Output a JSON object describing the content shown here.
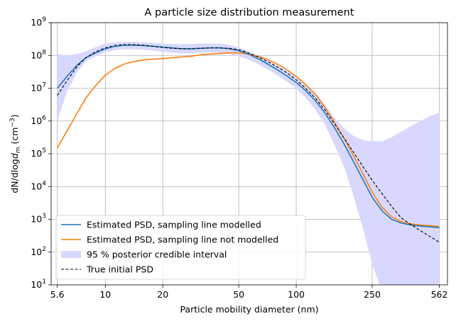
{
  "chart_data": {
    "type": "line",
    "title": "A particle size distribution measurement",
    "xlabel": "Particle mobility diameter (nm)",
    "ylabel_main": "dN/dlog",
    "ylabel_sym": "d",
    "ylabel_sub": "m",
    "ylabel_unit_pre": " (cm",
    "ylabel_unit_exp": "−3",
    "ylabel_unit_post": ")",
    "xscale": "log",
    "yscale": "log",
    "xlim": [
      5.2,
      620
    ],
    "ylim": [
      10,
      1000000000
    ],
    "grid": true,
    "legend_position": "lower-left",
    "x_ticks": [
      {
        "value": 5.6,
        "label": "5.6"
      },
      {
        "value": 10,
        "label": "10"
      },
      {
        "value": 20,
        "label": "20"
      },
      {
        "value": 50,
        "label": "50"
      },
      {
        "value": 100,
        "label": "100"
      },
      {
        "value": 250,
        "label": "250"
      },
      {
        "value": 562,
        "label": "562"
      }
    ],
    "y_ticks": [
      {
        "value": 10,
        "base": "10",
        "exp": "1"
      },
      {
        "value": 100,
        "base": "10",
        "exp": "2"
      },
      {
        "value": 1000,
        "base": "10",
        "exp": "3"
      },
      {
        "value": 10000,
        "base": "10",
        "exp": "4"
      },
      {
        "value": 100000,
        "base": "10",
        "exp": "5"
      },
      {
        "value": 1000000,
        "base": "10",
        "exp": "6"
      },
      {
        "value": 10000000,
        "base": "10",
        "exp": "7"
      },
      {
        "value": 100000000,
        "base": "10",
        "exp": "8"
      },
      {
        "value": 1000000000,
        "base": "10",
        "exp": "9"
      }
    ],
    "x": [
      5.6,
      6.3,
      7.1,
      7.9,
      8.9,
      10,
      11.2,
      12.6,
      14.1,
      15.8,
      17.8,
      20,
      22.4,
      25.1,
      28.2,
      31.6,
      35.5,
      39.8,
      44.7,
      50,
      56.2,
      63,
      70.8,
      79.4,
      89.1,
      100,
      112,
      126,
      141,
      158,
      178,
      200,
      224,
      251,
      282,
      316,
      355,
      398,
      447,
      501,
      562
    ],
    "series": [
      {
        "name": "Estimated PSD, sampling line modelled",
        "color": "#1f77b4",
        "style": "solid",
        "values": [
          10000000,
          23000000,
          50000000,
          85000000,
          120000000,
          160000000,
          190000000,
          205000000,
          205000000,
          200000000,
          190000000,
          180000000,
          170000000,
          160000000,
          160000000,
          165000000,
          170000000,
          170000000,
          160000000,
          140000000,
          110000000,
          80000000,
          55000000,
          37000000,
          24000000,
          15000000,
          8500000,
          4200000,
          1800000,
          650000,
          200000,
          56000,
          16000,
          4500,
          1800,
          1000,
          770,
          670,
          620,
          590,
          560
        ]
      },
      {
        "name": "Estimated PSD, sampling line not modelled",
        "color": "#ff7f0e",
        "style": "solid",
        "values": [
          150000,
          500000,
          1700000,
          5000000,
          12000000,
          25000000,
          40000000,
          55000000,
          65000000,
          72000000,
          77000000,
          80000000,
          85000000,
          90000000,
          95000000,
          105000000,
          110000000,
          115000000,
          120000000,
          120000000,
          110000000,
          95000000,
          75000000,
          55000000,
          37000000,
          23000000,
          13000000,
          6500000,
          2700000,
          950000,
          300000,
          85000,
          24000,
          6500,
          2300,
          1200,
          850,
          720,
          670,
          640,
          600
        ]
      },
      {
        "name": "True initial PSD",
        "color": "#000000",
        "style": "dashed",
        "values": [
          6000000,
          17000000,
          45000000,
          85000000,
          130000000,
          170000000,
          200000000,
          215000000,
          215000000,
          205000000,
          190000000,
          175000000,
          165000000,
          160000000,
          160000000,
          165000000,
          170000000,
          170000000,
          165000000,
          150000000,
          120000000,
          90000000,
          65000000,
          45000000,
          30000000,
          18000000,
          10000000,
          5000000,
          2200000,
          850000,
          300000,
          110000,
          40000,
          15000,
          6000,
          2500,
          1100,
          700,
          450,
          300,
          200
        ]
      }
    ],
    "band": {
      "name": "95 % posterior credible interval",
      "color": "#d8d8ff",
      "lower": [
        1000000,
        8000000,
        30000000,
        65000000,
        95000000,
        125000000,
        145000000,
        155000000,
        155000000,
        150000000,
        140000000,
        130000000,
        120000000,
        115000000,
        115000000,
        120000000,
        125000000,
        120000000,
        110000000,
        95000000,
        75000000,
        55000000,
        38000000,
        25000000,
        16000000,
        10000000,
        5000000,
        2200000,
        800000,
        200000,
        40000,
        5000,
        500,
        40,
        6,
        3,
        3,
        3,
        3,
        3,
        3
      ],
      "upper": [
        110000000,
        100000000,
        110000000,
        135000000,
        180000000,
        230000000,
        250000000,
        260000000,
        260000000,
        250000000,
        240000000,
        230000000,
        225000000,
        220000000,
        225000000,
        230000000,
        235000000,
        230000000,
        210000000,
        175000000,
        135000000,
        100000000,
        72000000,
        50000000,
        34000000,
        22000000,
        13000000,
        7000000,
        3200000,
        1300000,
        600000,
        350000,
        260000,
        240000,
        240000,
        320000,
        470000,
        700000,
        1000000,
        1400000,
        1800000
      ]
    },
    "legend_order": [
      "Estimated PSD, sampling line modelled",
      "Estimated PSD, sampling line not modelled",
      "95 % posterior credible interval",
      "True initial PSD"
    ]
  }
}
